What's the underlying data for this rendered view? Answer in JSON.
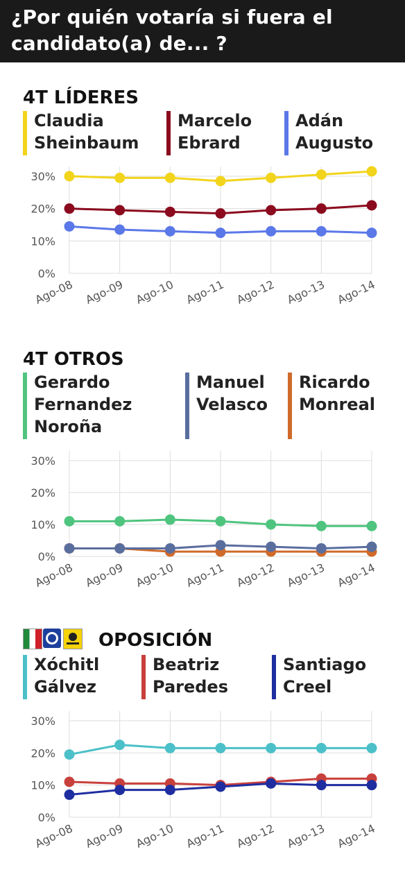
{
  "header": {
    "title_line1": "¿Por quién votaría si fuera el",
    "title_line2": "candidato(a) de... ?"
  },
  "colors": {
    "sheinbaum": "#f2d41c",
    "ebrard": "#8b0a1e",
    "adan": "#5a78e8",
    "noroña": "#4fc47e",
    "velasco": "#5a6e9e",
    "monreal": "#d06a2a",
    "galvez": "#4cc0c8",
    "paredes": "#c8403c",
    "creel": "#1e2ea0"
  },
  "sections": [
    {
      "title": "4T LÍDERES",
      "legend": [
        {
          "lines": [
            "Claudia",
            "Sheinbaum"
          ]
        },
        {
          "lines": [
            "Marcelo",
            "Ebrard"
          ]
        },
        {
          "lines": [
            "Adán",
            "Augusto"
          ]
        }
      ]
    },
    {
      "title": "4T OTROS",
      "legend": [
        {
          "lines": [
            "Gerardo",
            "Fernandez",
            "Noroña"
          ]
        },
        {
          "lines": [
            "Manuel",
            "Velasco"
          ]
        },
        {
          "lines": [
            "Ricardo",
            "Monreal"
          ]
        }
      ]
    },
    {
      "title": "OPOSICIÓN",
      "legend": [
        {
          "lines": [
            "Xóchitl",
            "Gálvez"
          ]
        },
        {
          "lines": [
            "Beatriz",
            "Paredes"
          ]
        },
        {
          "lines": [
            "Santiago",
            "Creel"
          ]
        }
      ]
    }
  ],
  "chart_data": [
    {
      "type": "line",
      "title": "4T LÍDERES",
      "categories": [
        "Ago-08",
        "Ago-09",
        "Ago-10",
        "Ago-11",
        "Ago-12",
        "Ago-13",
        "Ago-14"
      ],
      "yticks": [
        "0%",
        "10%",
        "20%",
        "30%"
      ],
      "ylim": [
        0,
        33
      ],
      "grid": true,
      "series": [
        {
          "name": "Claudia Sheinbaum",
          "color": "#f2d41c",
          "values": [
            30,
            29.5,
            29.5,
            28.5,
            29.5,
            30.5,
            31.5
          ]
        },
        {
          "name": "Marcelo Ebrard",
          "color": "#8b0a1e",
          "values": [
            20,
            19.5,
            19,
            18.5,
            19.5,
            20,
            21
          ]
        },
        {
          "name": "Adán Augusto",
          "color": "#5a78e8",
          "values": [
            14.5,
            13.5,
            13,
            12.5,
            13,
            13,
            12.5
          ]
        }
      ]
    },
    {
      "type": "line",
      "title": "4T OTROS",
      "categories": [
        "Ago-08",
        "Ago-09",
        "Ago-10",
        "Ago-11",
        "Ago-12",
        "Ago-13",
        "Ago-14"
      ],
      "yticks": [
        "0%",
        "10%",
        "20%",
        "30%"
      ],
      "ylim": [
        0,
        33
      ],
      "grid": true,
      "series": [
        {
          "name": "Gerardo Fernandez Noroña",
          "color": "#4fc47e",
          "values": [
            11,
            11,
            11.5,
            11,
            10,
            9.5,
            9.5
          ]
        },
        {
          "name": "Ricardo Monreal",
          "color": "#d06a2a",
          "values": [
            2.5,
            2.5,
            1.5,
            1.5,
            1.5,
            1.5,
            1.5
          ]
        },
        {
          "name": "Manuel Velasco",
          "color": "#5a6e9e",
          "values": [
            2.5,
            2.5,
            2.5,
            3.5,
            3,
            2.5,
            3
          ]
        }
      ]
    },
    {
      "type": "line",
      "title": "OPOSICIÓN",
      "categories": [
        "Ago-08",
        "Ago-09",
        "Ago-10",
        "Ago-11",
        "Ago-12",
        "Ago-13",
        "Ago-14"
      ],
      "yticks": [
        "0%",
        "10%",
        "20%",
        "30%"
      ],
      "ylim": [
        0,
        33
      ],
      "grid": true,
      "series": [
        {
          "name": "Xóchitl Gálvez",
          "color": "#4cc0c8",
          "values": [
            19.5,
            22.5,
            21.5,
            21.5,
            21.5,
            21.5,
            21.5
          ]
        },
        {
          "name": "Beatriz Paredes",
          "color": "#c8403c",
          "values": [
            11,
            10.5,
            10.5,
            10,
            11,
            12,
            12
          ]
        },
        {
          "name": "Santiago Creel",
          "color": "#1e2ea0",
          "values": [
            7,
            8.5,
            8.5,
            9.5,
            10.5,
            10,
            10
          ]
        }
      ]
    }
  ]
}
